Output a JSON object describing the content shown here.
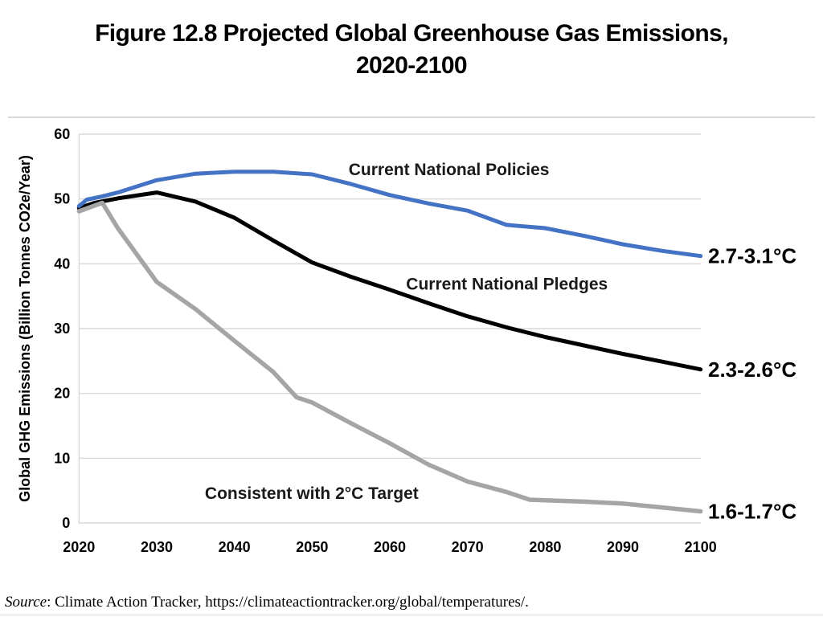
{
  "title": {
    "line1": "Figure 12.8 Projected Global Greenhouse Gas Emissions,",
    "line2": "2020-2100"
  },
  "source": {
    "label": "Source",
    "rest": ": Climate Action Tracker, https://climateactiontracker.org/global/temperatures/."
  },
  "chart_data": {
    "type": "line",
    "title": "Figure 12.8 Projected Global Greenhouse Gas Emissions, 2020-2100",
    "xlabel": "",
    "ylabel": "Global GHG Emissions (Billion Tonnes CO2e/Year)",
    "xlim": [
      2020,
      2100
    ],
    "ylim": [
      0,
      60
    ],
    "x_ticks": [
      2020,
      2030,
      2040,
      2050,
      2060,
      2070,
      2080,
      2090,
      2100
    ],
    "y_ticks": [
      0,
      10,
      20,
      30,
      40,
      50,
      60
    ],
    "grid": "horizontal",
    "grid_color": "#d9d9d9",
    "legend_position": "inline-annotations",
    "series": [
      {
        "name": "Current National Pledges",
        "color": "#000000",
        "width": 5,
        "end_label": "2.3-2.6°C",
        "x": [
          2020,
          2022,
          2025,
          2030,
          2035,
          2040,
          2045,
          2050,
          2055,
          2060,
          2065,
          2070,
          2075,
          2080,
          2085,
          2090,
          2095,
          2100
        ],
        "y": [
          48.6,
          49.4,
          50.1,
          51.0,
          49.6,
          47.1,
          43.6,
          40.2,
          38.0,
          36.0,
          33.9,
          31.9,
          30.2,
          28.7,
          27.4,
          26.1,
          24.9,
          23.7
        ]
      },
      {
        "name": "Consistent with 2°C Target",
        "color": "#a5a5a5",
        "width": 5.5,
        "end_label": "1.6-1.7°C",
        "x": [
          2020,
          2023,
          2025,
          2030,
          2035,
          2040,
          2045,
          2048,
          2050,
          2055,
          2060,
          2065,
          2070,
          2075,
          2078,
          2080,
          2085,
          2090,
          2095,
          2100
        ],
        "y": [
          48.1,
          49.4,
          45.5,
          37.2,
          33.0,
          28.1,
          23.3,
          19.4,
          18.6,
          15.4,
          12.3,
          9.0,
          6.4,
          4.8,
          3.6,
          3.5,
          3.3,
          3.0,
          2.4,
          1.8
        ]
      },
      {
        "name": "Current National Policies",
        "color": "#4472c4",
        "width": 5,
        "end_label": "2.7-3.1°C",
        "x": [
          2020,
          2021,
          2023,
          2025,
          2030,
          2035,
          2040,
          2045,
          2050,
          2055,
          2060,
          2065,
          2070,
          2075,
          2080,
          2085,
          2090,
          2095,
          2100
        ],
        "y": [
          48.9,
          49.9,
          50.4,
          51.0,
          52.9,
          53.9,
          54.2,
          54.2,
          53.8,
          52.3,
          50.6,
          49.3,
          48.2,
          46.0,
          45.5,
          44.3,
          43.0,
          42.0,
          41.2
        ]
      }
    ],
    "annotations": [
      {
        "text": "Current National Policies",
        "year": 2054.7,
        "value": 53.7
      },
      {
        "text": "Current National Pledges",
        "year": 2062.1,
        "value": 36.0
      },
      {
        "text": "Consistent with 2°C Target",
        "year": 2036.2,
        "value": 3.7
      }
    ]
  }
}
